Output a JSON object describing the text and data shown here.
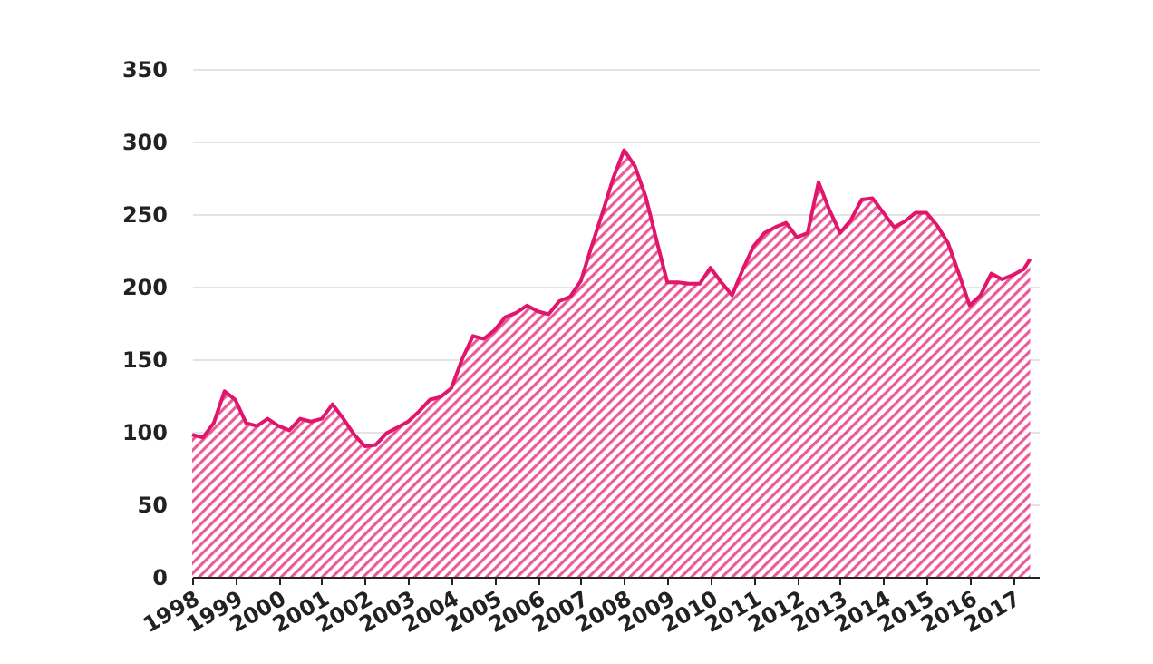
{
  "chart_data": {
    "type": "area",
    "x": [
      1998,
      1998.25,
      1998.5,
      1998.75,
      1999,
      1999.25,
      1999.5,
      1999.75,
      2000,
      2000.25,
      2000.5,
      2000.75,
      2001,
      2001.25,
      2001.5,
      2001.75,
      2002,
      2002.25,
      2002.5,
      2002.75,
      2003,
      2003.25,
      2003.5,
      2003.75,
      2004,
      2004.25,
      2004.5,
      2004.75,
      2005,
      2005.25,
      2005.5,
      2005.75,
      2006,
      2006.25,
      2006.5,
      2006.75,
      2007,
      2007.25,
      2007.5,
      2007.75,
      2008,
      2008.25,
      2008.5,
      2008.75,
      2009,
      2009.25,
      2009.5,
      2009.75,
      2010,
      2010.25,
      2010.5,
      2010.75,
      2011,
      2011.25,
      2011.5,
      2011.75,
      2012,
      2012.25,
      2012.5,
      2012.75,
      2013,
      2013.25,
      2013.5,
      2013.75,
      2014,
      2014.25,
      2014.5,
      2014.75,
      2015,
      2015.25,
      2015.5,
      2015.75,
      2016,
      2016.25,
      2016.5,
      2016.75,
      2017,
      2017.25,
      2017.4
    ],
    "series": [
      {
        "color": "#e0156b",
        "values": [
          98,
          96,
          106,
          128,
          122,
          106,
          104,
          109,
          104,
          101,
          109,
          107,
          109,
          119,
          109,
          98,
          90,
          91,
          99,
          103,
          107,
          114,
          122,
          124,
          130,
          150,
          166,
          164,
          170,
          179,
          182,
          187,
          183,
          181,
          190,
          193,
          204,
          228,
          251,
          275,
          294,
          283,
          262,
          232,
          203,
          203,
          202,
          202,
          213,
          203,
          194,
          212,
          228,
          237,
          241,
          244,
          234,
          237,
          272,
          253,
          237,
          246,
          260,
          261,
          251,
          241,
          245,
          251,
          251,
          242,
          230,
          209,
          187,
          194,
          209,
          205,
          208,
          212,
          219
        ]
      }
    ],
    "xlim": [
      1998,
      2017.6
    ],
    "xticks": [
      1998,
      1999,
      2000,
      2001,
      2002,
      2003,
      2004,
      2005,
      2006,
      2007,
      2008,
      2009,
      2010,
      2011,
      2012,
      2013,
      2014,
      2015,
      2016,
      2017
    ],
    "ylim": [
      0,
      350
    ],
    "yticks": [
      0,
      50,
      100,
      150,
      200,
      250,
      300,
      350
    ],
    "grid": "y"
  }
}
